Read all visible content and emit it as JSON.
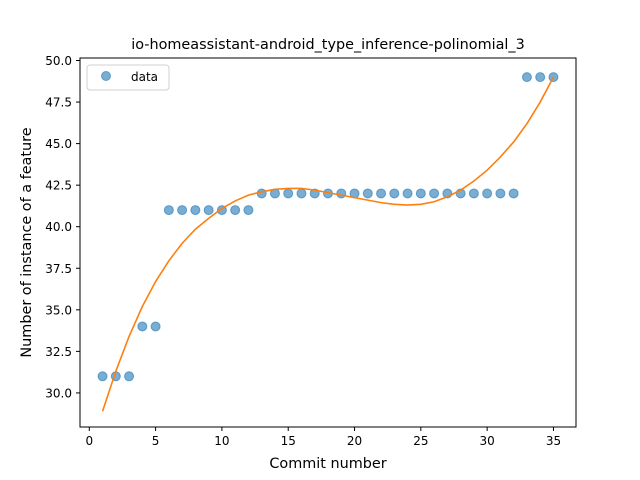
{
  "chart_data": {
    "type": "scatter",
    "title": "io-homeassistant-android_type_inference-polinomial_3",
    "xlabel": "Commit number",
    "ylabel": "Number of instance of a feature",
    "xlim": [
      -0.7,
      36.7
    ],
    "ylim": [
      27.95,
      50.15
    ],
    "x_ticks": [
      0,
      5,
      10,
      15,
      20,
      25,
      30,
      35
    ],
    "y_ticks": [
      30.0,
      32.5,
      35.0,
      37.5,
      40.0,
      42.5,
      45.0,
      47.5,
      50.0
    ],
    "x_tick_labels": [
      "0",
      "5",
      "10",
      "15",
      "20",
      "25",
      "30",
      "35"
    ],
    "y_tick_labels": [
      "30.0",
      "32.5",
      "35.0",
      "37.5",
      "40.0",
      "42.5",
      "45.0",
      "47.5",
      "50.0"
    ],
    "legend": {
      "placement": "top-left",
      "entries": [
        "data"
      ]
    },
    "grid": false,
    "series": [
      {
        "name": "data",
        "kind": "scatter",
        "color": "#1f77b4",
        "x": [
          1,
          2,
          3,
          4,
          5,
          6,
          7,
          8,
          9,
          10,
          11,
          12,
          13,
          14,
          15,
          16,
          17,
          18,
          19,
          20,
          21,
          22,
          23,
          24,
          25,
          26,
          27,
          28,
          29,
          30,
          31,
          32,
          33,
          34,
          35
        ],
        "y": [
          31,
          31,
          31,
          34,
          34,
          41,
          41,
          41,
          41,
          41,
          41,
          41,
          42,
          42,
          42,
          42,
          42,
          42,
          42,
          42,
          42,
          42,
          42,
          42,
          42,
          42,
          42,
          42,
          42,
          42,
          42,
          42,
          49,
          49,
          49
        ]
      },
      {
        "kind": "line",
        "color": "#ff7f0e",
        "x": [
          1,
          2,
          3,
          4,
          5,
          6,
          7,
          8,
          9,
          10,
          11,
          12,
          13,
          14,
          15,
          16,
          17,
          18,
          19,
          20,
          21,
          22,
          23,
          24,
          25,
          26,
          27,
          28,
          29,
          30,
          31,
          32,
          33,
          34,
          35
        ],
        "y": [
          28.9,
          31.3,
          33.4,
          35.2,
          36.7,
          37.95,
          39.0,
          39.85,
          40.5,
          41.1,
          41.55,
          41.9,
          42.1,
          42.25,
          42.3,
          42.3,
          42.2,
          42.05,
          41.9,
          41.75,
          41.6,
          41.45,
          41.35,
          41.3,
          41.35,
          41.5,
          41.8,
          42.2,
          42.75,
          43.4,
          44.2,
          45.1,
          46.2,
          47.5,
          49.0
        ]
      }
    ]
  }
}
